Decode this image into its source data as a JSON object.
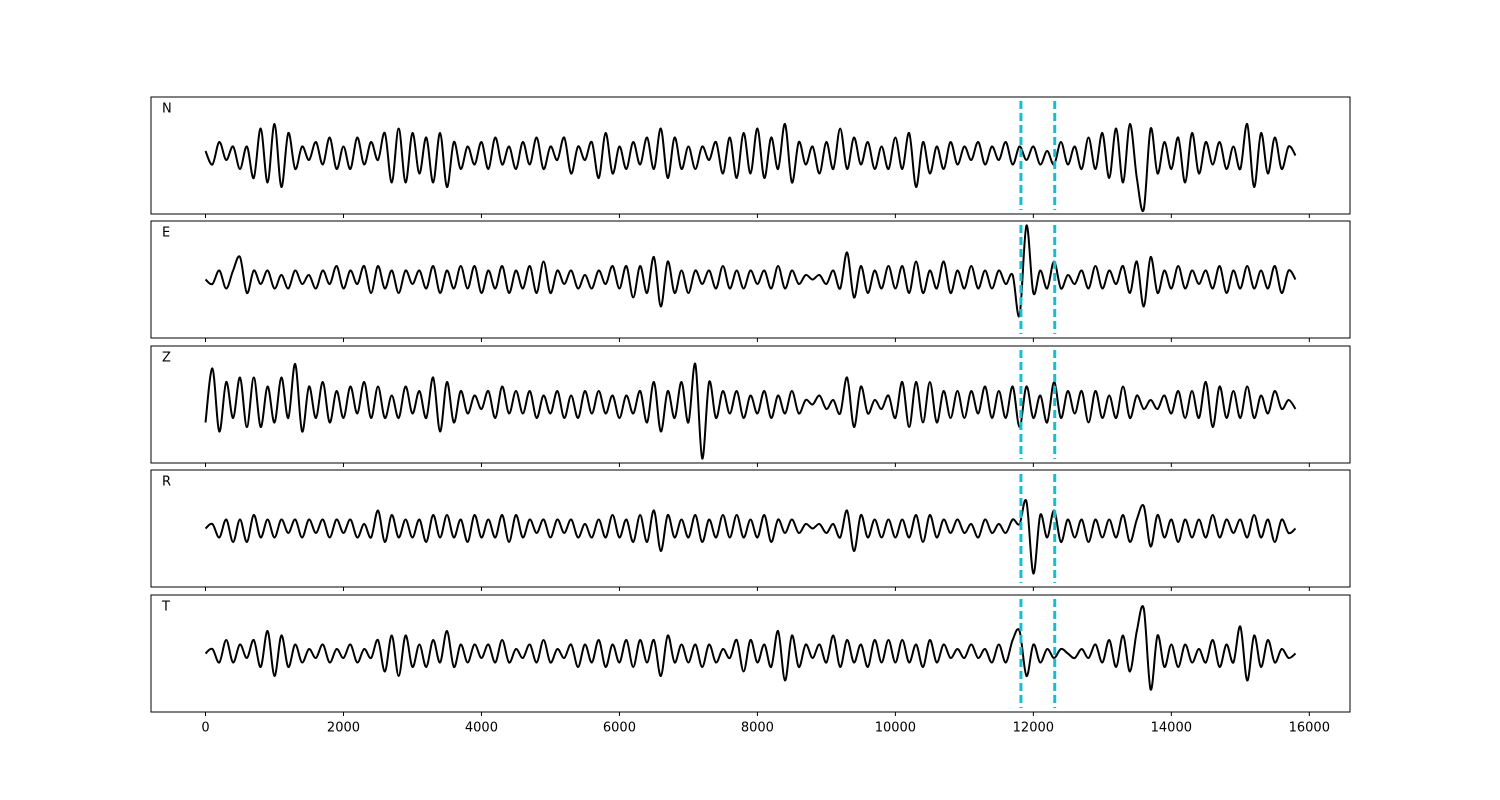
{
  "chart_data": {
    "type": "line",
    "x": [
      0,
      100,
      200,
      300,
      400,
      500,
      600,
      700,
      800,
      900,
      1000,
      1100,
      1200,
      1300,
      1400,
      1500,
      1600,
      1700,
      1800,
      1900,
      2000,
      2100,
      2200,
      2300,
      2400,
      2500,
      2600,
      2700,
      2800,
      2900,
      3000,
      3100,
      3200,
      3300,
      3400,
      3500,
      3600,
      3700,
      3800,
      3900,
      4000,
      4100,
      4200,
      4300,
      4400,
      4500,
      4600,
      4700,
      4800,
      4900,
      5000,
      5100,
      5200,
      5300,
      5400,
      5500,
      5600,
      5700,
      5800,
      5900,
      6000,
      6100,
      6200,
      6300,
      6400,
      6500,
      6600,
      6700,
      6800,
      6900,
      7000,
      7100,
      7200,
      7300,
      7400,
      7500,
      7600,
      7700,
      7800,
      7900,
      8000,
      8100,
      8200,
      8300,
      8400,
      8500,
      8600,
      8700,
      8800,
      8900,
      9000,
      9100,
      9200,
      9300,
      9400,
      9500,
      9600,
      9700,
      9800,
      9900,
      10000,
      10100,
      10200,
      10300,
      10400,
      10500,
      10600,
      10700,
      10800,
      10900,
      11000,
      11100,
      11200,
      11300,
      11400,
      11500,
      11600,
      11700,
      11800,
      11900,
      12000,
      12100,
      12200,
      12300,
      12400,
      12500,
      12600,
      12700,
      12800,
      12900,
      13000,
      13100,
      13200,
      13300,
      13400,
      13500,
      13600,
      13700,
      13800,
      13900,
      14000,
      14100,
      14200,
      14300,
      14400,
      14500,
      14600,
      14700,
      14800,
      14900,
      15000,
      15100,
      15200,
      15300,
      15400,
      15500,
      15600,
      15700,
      15800
    ],
    "series": [
      {
        "name": "N",
        "color": "#000000",
        "values": [
          0.1,
          -0.2,
          0.3,
          -0.1,
          0.2,
          -0.3,
          0.2,
          -0.5,
          0.6,
          -0.6,
          0.7,
          -0.7,
          0.5,
          -0.3,
          0.2,
          -0.1,
          0.3,
          -0.2,
          0.4,
          -0.3,
          0.2,
          -0.3,
          0.4,
          -0.2,
          0.3,
          -0.1,
          0.5,
          -0.6,
          0.6,
          -0.6,
          0.5,
          -0.4,
          0.4,
          -0.6,
          0.5,
          -0.7,
          0.3,
          -0.3,
          0.2,
          -0.2,
          0.3,
          -0.3,
          0.4,
          -0.2,
          0.2,
          -0.3,
          0.3,
          -0.2,
          0.4,
          -0.3,
          0.2,
          -0.1,
          0.4,
          -0.4,
          0.2,
          -0.1,
          0.3,
          -0.5,
          0.5,
          -0.4,
          0.2,
          -0.3,
          0.3,
          -0.2,
          0.4,
          -0.3,
          0.6,
          -0.5,
          0.4,
          -0.3,
          0.2,
          -0.3,
          0.2,
          -0.1,
          0.3,
          -0.4,
          0.4,
          -0.5,
          0.5,
          -0.4,
          0.6,
          -0.5,
          0.4,
          -0.3,
          0.7,
          -0.6,
          0.3,
          -0.2,
          0.2,
          -0.4,
          0.3,
          -0.3,
          0.6,
          -0.3,
          0.4,
          -0.2,
          0.3,
          -0.3,
          0.2,
          -0.3,
          0.4,
          -0.3,
          0.5,
          -0.7,
          0.3,
          -0.4,
          0.2,
          -0.3,
          0.3,
          -0.2,
          0.2,
          -0.1,
          0.3,
          -0.2,
          0.2,
          -0.1,
          0.3,
          -0.2,
          0.2,
          -0.1,
          0.2,
          -0.2,
          0.1,
          -0.2,
          0.3,
          -0.2,
          0.2,
          -0.3,
          0.4,
          -0.3,
          0.5,
          -0.5,
          0.6,
          -0.6,
          0.7,
          -0.5,
          -1.2,
          0.6,
          -0.4,
          0.3,
          -0.3,
          0.4,
          -0.6,
          0.5,
          -0.4,
          0.3,
          -0.2,
          0.3,
          -0.3,
          0.2,
          -0.3,
          0.7,
          -0.7,
          0.5,
          -0.4,
          0.4,
          -0.3,
          0.2,
          0.0
        ]
      },
      {
        "name": "E",
        "color": "#000000",
        "values": [
          0.0,
          -0.1,
          0.2,
          -0.2,
          0.2,
          0.5,
          -0.3,
          0.2,
          -0.1,
          0.2,
          -0.2,
          0.1,
          -0.2,
          0.2,
          -0.1,
          0.1,
          -0.2,
          0.2,
          -0.1,
          0.3,
          -0.2,
          0.2,
          -0.1,
          0.3,
          -0.3,
          0.3,
          -0.2,
          0.2,
          -0.3,
          0.2,
          -0.1,
          0.2,
          -0.2,
          0.3,
          -0.3,
          0.2,
          -0.2,
          0.3,
          -0.2,
          0.3,
          -0.3,
          0.2,
          -0.2,
          0.3,
          -0.3,
          0.2,
          -0.2,
          0.3,
          -0.3,
          0.4,
          -0.3,
          0.2,
          -0.1,
          0.2,
          -0.2,
          0.1,
          -0.2,
          0.2,
          -0.1,
          0.3,
          -0.2,
          0.3,
          -0.4,
          0.3,
          -0.3,
          0.5,
          -0.6,
          0.4,
          -0.3,
          0.2,
          -0.3,
          0.2,
          -0.1,
          0.2,
          -0.2,
          0.3,
          -0.2,
          0.2,
          -0.2,
          0.2,
          -0.1,
          0.2,
          -0.2,
          0.3,
          -0.2,
          0.2,
          -0.1,
          0.1,
          0.0,
          0.1,
          -0.1,
          0.2,
          -0.2,
          0.6,
          -0.4,
          0.3,
          -0.3,
          0.2,
          -0.2,
          0.3,
          -0.2,
          0.3,
          -0.3,
          0.4,
          -0.3,
          0.2,
          -0.2,
          0.4,
          -0.3,
          0.2,
          -0.2,
          0.3,
          -0.2,
          0.2,
          -0.2,
          0.2,
          -0.1,
          0.1,
          -0.8,
          1.2,
          -0.3,
          0.2,
          -0.2,
          0.4,
          -0.2,
          0.1,
          -0.1,
          0.2,
          -0.2,
          0.3,
          -0.2,
          0.2,
          -0.1,
          0.3,
          -0.3,
          0.4,
          -0.6,
          0.5,
          -0.3,
          0.2,
          -0.2,
          0.3,
          -0.2,
          0.2,
          -0.1,
          0.2,
          -0.2,
          0.3,
          -0.3,
          0.2,
          -0.2,
          0.3,
          -0.2,
          0.2,
          -0.2,
          0.3,
          -0.3,
          0.2,
          0.0
        ]
      },
      {
        "name": "Z",
        "color": "#000000",
        "values": [
          -0.4,
          0.8,
          -0.6,
          0.5,
          -0.3,
          0.6,
          -0.5,
          0.6,
          -0.5,
          0.4,
          -0.4,
          0.6,
          -0.3,
          0.9,
          -0.6,
          0.4,
          -0.3,
          0.5,
          -0.4,
          0.3,
          -0.3,
          0.4,
          -0.2,
          0.5,
          -0.3,
          0.4,
          -0.3,
          0.2,
          -0.3,
          0.4,
          -0.2,
          0.3,
          -0.3,
          0.6,
          -0.6,
          0.5,
          -0.4,
          0.3,
          -0.2,
          0.2,
          -0.1,
          0.3,
          -0.3,
          0.4,
          -0.2,
          0.3,
          -0.2,
          0.3,
          -0.3,
          0.2,
          -0.2,
          0.3,
          -0.3,
          0.2,
          -0.3,
          0.3,
          -0.2,
          0.3,
          -0.2,
          0.2,
          -0.3,
          0.2,
          -0.2,
          0.3,
          -0.4,
          0.5,
          -0.6,
          0.3,
          -0.3,
          0.5,
          -0.4,
          0.9,
          -1.2,
          0.5,
          -0.3,
          0.3,
          -0.2,
          0.3,
          -0.3,
          0.2,
          -0.2,
          0.3,
          -0.3,
          0.2,
          -0.2,
          0.3,
          -0.2,
          0.1,
          0.0,
          0.2,
          -0.1,
          0.1,
          -0.2,
          0.6,
          -0.5,
          0.4,
          -0.2,
          0.1,
          -0.1,
          0.2,
          -0.3,
          0.5,
          -0.5,
          0.5,
          -0.4,
          0.5,
          -0.4,
          0.3,
          -0.3,
          0.3,
          -0.3,
          0.3,
          -0.2,
          0.4,
          -0.3,
          0.3,
          -0.3,
          0.4,
          -0.5,
          0.4,
          -0.3,
          0.2,
          -0.4,
          0.5,
          -0.3,
          0.3,
          -0.2,
          0.3,
          -0.4,
          0.3,
          -0.3,
          0.2,
          -0.3,
          0.4,
          -0.3,
          0.2,
          -0.1,
          0.1,
          -0.1,
          0.2,
          -0.2,
          0.3,
          -0.3,
          0.3,
          -0.3,
          0.5,
          -0.5,
          0.4,
          -0.3,
          0.3,
          -0.3,
          0.4,
          -0.3,
          0.2,
          -0.2,
          0.3,
          -0.1,
          0.1,
          -0.1
        ]
      },
      {
        "name": "R",
        "color": "#000000",
        "values": [
          0.0,
          0.1,
          -0.2,
          0.2,
          -0.3,
          0.2,
          -0.3,
          0.3,
          -0.2,
          0.2,
          -0.2,
          0.2,
          -0.1,
          0.2,
          -0.2,
          0.2,
          -0.1,
          0.2,
          -0.2,
          0.2,
          -0.1,
          0.2,
          -0.2,
          0.1,
          -0.2,
          0.4,
          -0.3,
          0.3,
          -0.2,
          0.2,
          -0.2,
          0.2,
          -0.3,
          0.3,
          -0.2,
          0.3,
          -0.2,
          0.2,
          -0.3,
          0.3,
          -0.2,
          0.2,
          -0.2,
          0.3,
          -0.3,
          0.3,
          -0.2,
          0.2,
          -0.1,
          0.2,
          -0.2,
          0.2,
          -0.1,
          0.2,
          -0.2,
          0.1,
          -0.2,
          0.2,
          -0.2,
          0.3,
          -0.2,
          0.2,
          -0.3,
          0.3,
          -0.3,
          0.4,
          -0.5,
          0.3,
          -0.2,
          0.2,
          -0.2,
          0.3,
          -0.3,
          0.2,
          -0.2,
          0.3,
          -0.2,
          0.3,
          -0.2,
          0.2,
          -0.2,
          0.3,
          -0.3,
          0.2,
          -0.1,
          0.2,
          -0.1,
          0.1,
          0.0,
          0.1,
          -0.1,
          0.1,
          -0.2,
          0.4,
          -0.5,
          0.3,
          -0.2,
          0.2,
          -0.2,
          0.2,
          -0.2,
          0.2,
          -0.2,
          0.3,
          -0.3,
          0.3,
          -0.2,
          0.2,
          -0.1,
          0.2,
          -0.1,
          0.1,
          -0.2,
          0.2,
          -0.1,
          0.1,
          -0.1,
          0.2,
          0.1,
          0.6,
          -1.0,
          0.3,
          -0.2,
          0.4,
          -0.3,
          0.2,
          -0.2,
          0.2,
          -0.3,
          0.2,
          -0.2,
          0.2,
          -0.2,
          0.3,
          -0.3,
          0.2,
          0.5,
          -0.4,
          0.3,
          -0.2,
          0.2,
          -0.3,
          0.2,
          -0.2,
          0.2,
          -0.2,
          0.3,
          -0.2,
          0.2,
          -0.1,
          0.2,
          -0.2,
          0.3,
          -0.2,
          0.2,
          -0.3,
          0.2,
          -0.1,
          0.0
        ]
      },
      {
        "name": "T",
        "color": "#000000",
        "values": [
          0.0,
          0.1,
          -0.2,
          0.3,
          -0.2,
          0.2,
          -0.1,
          0.3,
          -0.3,
          0.5,
          -0.5,
          0.4,
          -0.3,
          0.2,
          -0.2,
          0.1,
          -0.1,
          0.2,
          -0.2,
          0.1,
          -0.1,
          0.2,
          -0.2,
          0.1,
          -0.1,
          0.3,
          -0.4,
          0.4,
          -0.5,
          0.4,
          -0.3,
          0.2,
          -0.3,
          0.3,
          -0.2,
          0.5,
          -0.3,
          0.2,
          -0.2,
          0.2,
          -0.1,
          0.2,
          -0.2,
          0.3,
          -0.2,
          0.1,
          -0.1,
          0.2,
          -0.2,
          0.3,
          -0.2,
          0.1,
          -0.1,
          0.2,
          -0.3,
          0.2,
          -0.2,
          0.3,
          -0.3,
          0.2,
          -0.2,
          0.3,
          -0.3,
          0.3,
          -0.2,
          0.3,
          -0.5,
          0.4,
          -0.2,
          0.2,
          -0.2,
          0.2,
          -0.3,
          0.2,
          -0.2,
          0.1,
          -0.1,
          0.3,
          -0.4,
          0.3,
          -0.2,
          0.2,
          -0.3,
          0.5,
          -0.6,
          0.4,
          -0.3,
          0.2,
          -0.1,
          0.2,
          -0.2,
          0.4,
          -0.3,
          0.3,
          -0.2,
          0.2,
          -0.3,
          0.3,
          -0.2,
          0.3,
          -0.2,
          0.3,
          -0.2,
          0.2,
          -0.3,
          0.3,
          -0.2,
          0.2,
          -0.1,
          0.1,
          -0.1,
          0.2,
          -0.1,
          0.1,
          -0.2,
          0.2,
          -0.2,
          0.3,
          0.5,
          -0.5,
          0.2,
          -0.2,
          0.1,
          -0.1,
          0.1,
          0.0,
          -0.1,
          0.1,
          -0.1,
          0.2,
          -0.2,
          0.3,
          -0.3,
          0.4,
          -0.4,
          0.5,
          1.0,
          -0.8,
          0.4,
          -0.3,
          0.2,
          -0.3,
          0.2,
          -0.2,
          0.1,
          -0.2,
          0.3,
          -0.3,
          0.2,
          -0.2,
          0.6,
          -0.6,
          0.4,
          -0.3,
          0.3,
          -0.2,
          0.1,
          -0.1,
          0.0
        ]
      }
    ],
    "xlim": [
      -790,
      16590
    ],
    "ylim": [
      -1.3,
      1.3
    ],
    "xticks": [
      0,
      2000,
      4000,
      6000,
      8000,
      10000,
      12000,
      14000,
      16000
    ],
    "vlines": [
      11820,
      12310
    ],
    "vline_color": "#17becf"
  }
}
